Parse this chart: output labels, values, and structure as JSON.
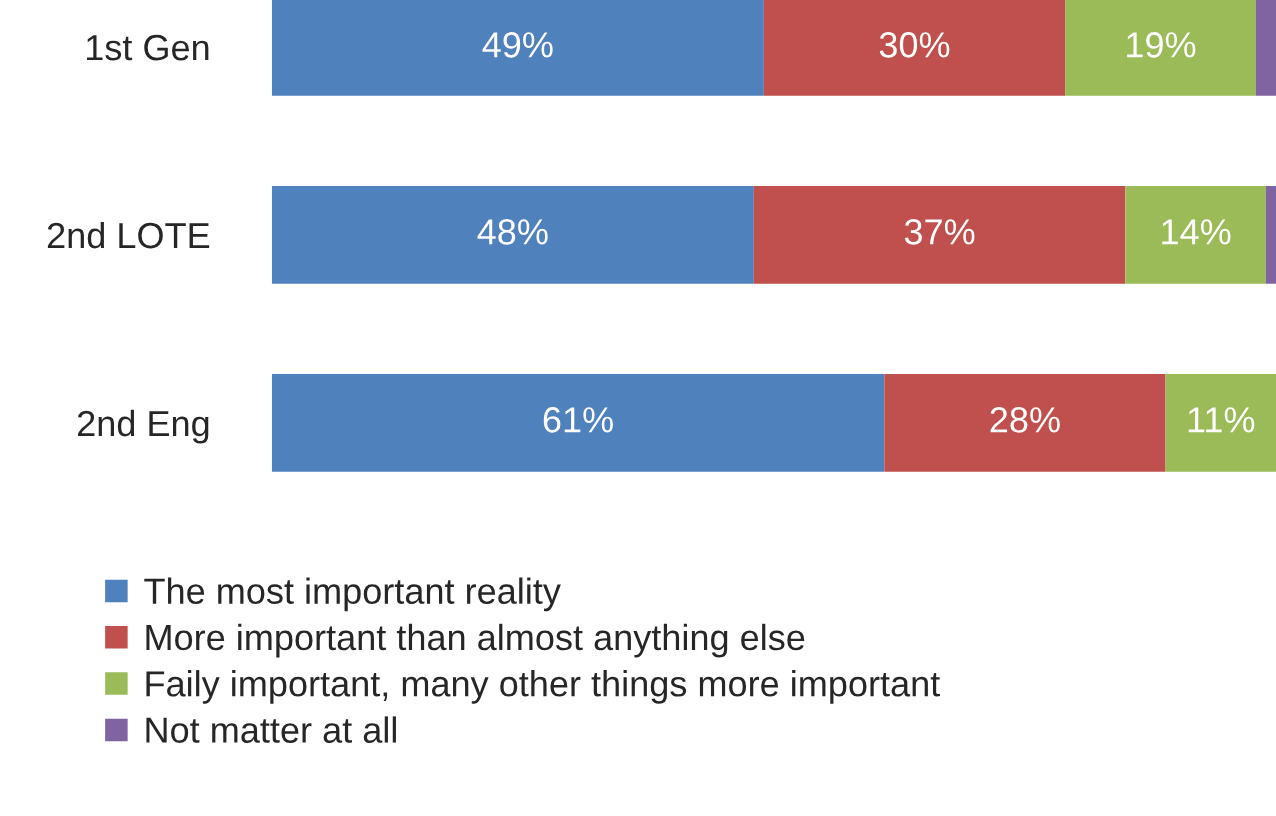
{
  "chart_data": {
    "type": "bar",
    "orientation": "horizontal",
    "stacked": true,
    "categories": [
      "1st Gen",
      "2nd LOTE",
      "2nd Eng"
    ],
    "series": [
      {
        "name": "The most important reality",
        "color": "#4f81bd",
        "values": [
          49,
          48,
          61
        ],
        "value_labels": [
          "49%",
          "48%",
          "61%"
        ]
      },
      {
        "name": "More important than almost anything else",
        "color": "#c0504d",
        "values": [
          30,
          37,
          28
        ],
        "value_labels": [
          "30%",
          "37%",
          "28%"
        ]
      },
      {
        "name": "Faily important, many other things more important",
        "color": "#9bbb59",
        "values": [
          19,
          14,
          11
        ],
        "value_labels": [
          "19%",
          "14%",
          "11%"
        ]
      },
      {
        "name": "Not matter at all",
        "color": "#8064a2",
        "values": [
          2,
          1,
          0
        ],
        "value_labels": [
          null,
          null,
          null
        ]
      }
    ],
    "legend": "bottom",
    "grid": false
  }
}
